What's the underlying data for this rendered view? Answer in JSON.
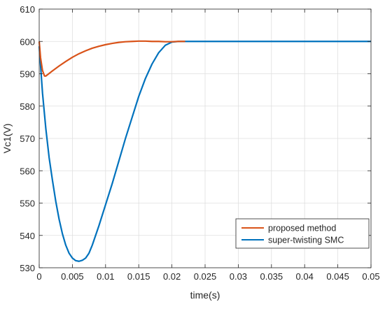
{
  "chart_data": {
    "type": "line",
    "xlabel": "time(s)",
    "ylabel": "Vc1(V)",
    "xlim": [
      0,
      0.05
    ],
    "ylim": [
      530,
      610
    ],
    "x_ticks": [
      "0",
      "0.005",
      "0.01",
      "0.015",
      "0.02",
      "0.025",
      "0.03",
      "0.035",
      "0.04",
      "0.045",
      "0.05"
    ],
    "y_ticks": [
      "530",
      "540",
      "550",
      "560",
      "570",
      "580",
      "590",
      "600",
      "610"
    ],
    "grid": true,
    "legend_position": "bottom-right",
    "series": [
      {
        "name": "proposed method",
        "color": "#D95319",
        "x": [
          0,
          0.0002,
          0.0005,
          0.0008,
          0.001,
          0.002,
          0.003,
          0.004,
          0.005,
          0.006,
          0.007,
          0.008,
          0.009,
          0.01,
          0.011,
          0.012,
          0.013,
          0.014,
          0.015,
          0.016,
          0.017,
          0.018,
          0.019,
          0.02,
          0.021,
          0.022
        ],
        "y": [
          600,
          595,
          591,
          589.3,
          589.3,
          590.9,
          592.4,
          593.8,
          595.1,
          596.2,
          597.1,
          597.9,
          598.5,
          599.0,
          599.4,
          599.7,
          599.9,
          600.0,
          600.1,
          600.1,
          600.0,
          600.0,
          599.9,
          599.9,
          600.0,
          600.0
        ]
      },
      {
        "name": "super-twisting SMC",
        "color": "#0072BD",
        "x": [
          0,
          0.0005,
          0.001,
          0.0015,
          0.002,
          0.0025,
          0.003,
          0.0035,
          0.004,
          0.0045,
          0.005,
          0.0055,
          0.006,
          0.0065,
          0.007,
          0.0075,
          0.008,
          0.009,
          0.01,
          0.011,
          0.012,
          0.013,
          0.014,
          0.015,
          0.016,
          0.017,
          0.018,
          0.019,
          0.02,
          0.021,
          0.0215,
          0.022,
          0.0225,
          0.023,
          0.025,
          0.03,
          0.035,
          0.04,
          0.045,
          0.05
        ],
        "y": [
          598.5,
          584,
          573,
          564,
          557,
          550.5,
          545,
          540.5,
          537,
          534.5,
          533,
          532.2,
          532,
          532.3,
          533,
          534.5,
          537,
          543,
          549.5,
          556,
          563,
          570,
          576.5,
          583,
          588.5,
          593,
          596.5,
          598.8,
          599.8,
          600.0,
          600.0,
          600.0,
          600.0,
          600.0,
          600.0,
          600.0,
          600.0,
          600.0,
          600.0,
          600.0
        ]
      }
    ]
  }
}
